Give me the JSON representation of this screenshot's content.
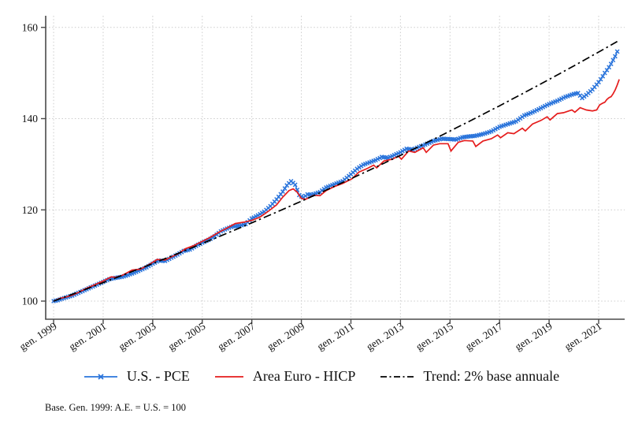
{
  "footnote": "Base. Gen. 1999: A.E. = U.S. = 100",
  "colors": {
    "us_pce": "#2a74db",
    "euro_hicp": "#e51c1c",
    "trend": "#000000",
    "grid": "#cccccc",
    "axis": "#4a4a4a",
    "text": "#111111",
    "background": "#ffffff"
  },
  "chart_data": {
    "type": "line",
    "title": "",
    "xlabel": "",
    "ylabel": "",
    "grid": "dotted",
    "legend_position": "bottom-center",
    "y_axis": {
      "ticks": [
        100,
        120,
        140,
        160
      ],
      "domain": [
        96.0,
        162.5
      ]
    },
    "x_axis": {
      "domain": [
        1998.68,
        2022.05
      ],
      "ticks": [
        {
          "t": 1999,
          "label": "gen. 1999"
        },
        {
          "t": 2001,
          "label": "gen. 2001"
        },
        {
          "t": 2003,
          "label": "gen. 2003"
        },
        {
          "t": 2005,
          "label": "gen. 2005"
        },
        {
          "t": 2007,
          "label": "gen. 2007"
        },
        {
          "t": 2009,
          "label": "gen. 2009"
        },
        {
          "t": 2011,
          "label": "gen. 2011"
        },
        {
          "t": 2013,
          "label": "gen. 2013"
        },
        {
          "t": 2015,
          "label": "gen. 2015"
        },
        {
          "t": 2017,
          "label": "gen. 2017"
        },
        {
          "t": 2019,
          "label": "gen. 2019"
        },
        {
          "t": 2021,
          "label": "gen. 2021"
        }
      ]
    },
    "series": [
      {
        "name": "U.S. - PCE",
        "color_key": "us_pce",
        "line_style": "solid",
        "marker": "x",
        "marker_interval_years": 0.0833,
        "points": [
          [
            1999.0,
            100.0
          ],
          [
            1999.17,
            100.2
          ],
          [
            1999.33,
            100.5
          ],
          [
            1999.5,
            100.8
          ],
          [
            1999.75,
            101.2
          ],
          [
            2000.0,
            101.8
          ],
          [
            2000.25,
            102.4
          ],
          [
            2000.5,
            103.0
          ],
          [
            2000.75,
            103.6
          ],
          [
            2001.0,
            104.2
          ],
          [
            2001.25,
            104.8
          ],
          [
            2001.5,
            105.1
          ],
          [
            2001.75,
            105.3
          ],
          [
            2002.0,
            105.7
          ],
          [
            2002.25,
            106.2
          ],
          [
            2002.5,
            106.8
          ],
          [
            2002.75,
            107.4
          ],
          [
            2003.0,
            108.2
          ],
          [
            2003.25,
            108.9
          ],
          [
            2003.5,
            108.8
          ],
          [
            2003.75,
            109.5
          ],
          [
            2004.0,
            110.2
          ],
          [
            2004.25,
            111.0
          ],
          [
            2004.5,
            111.3
          ],
          [
            2004.75,
            112.1
          ],
          [
            2005.0,
            112.8
          ],
          [
            2005.25,
            113.4
          ],
          [
            2005.5,
            114.2
          ],
          [
            2005.75,
            115.3
          ],
          [
            2006.0,
            115.9
          ],
          [
            2006.25,
            116.4
          ],
          [
            2006.5,
            116.5
          ],
          [
            2006.75,
            116.9
          ],
          [
            2007.0,
            118.1
          ],
          [
            2007.25,
            118.8
          ],
          [
            2007.5,
            119.6
          ],
          [
            2007.75,
            120.8
          ],
          [
            2008.0,
            122.3
          ],
          [
            2008.25,
            124.0
          ],
          [
            2008.42,
            125.4
          ],
          [
            2008.58,
            126.3
          ],
          [
            2008.75,
            125.5
          ],
          [
            2008.92,
            123.2
          ],
          [
            2009.08,
            122.7
          ],
          [
            2009.25,
            123.4
          ],
          [
            2009.42,
            123.3
          ],
          [
            2009.58,
            123.6
          ],
          [
            2009.75,
            123.9
          ],
          [
            2010.0,
            124.9
          ],
          [
            2010.33,
            125.6
          ],
          [
            2010.67,
            126.3
          ],
          [
            2011.0,
            127.8
          ],
          [
            2011.25,
            129.0
          ],
          [
            2011.5,
            129.9
          ],
          [
            2011.75,
            130.4
          ],
          [
            2012.0,
            130.9
          ],
          [
            2012.25,
            131.6
          ],
          [
            2012.5,
            131.4
          ],
          [
            2012.75,
            132.0
          ],
          [
            2013.0,
            132.6
          ],
          [
            2013.25,
            133.4
          ],
          [
            2013.5,
            133.2
          ],
          [
            2013.75,
            133.8
          ],
          [
            2014.0,
            134.3
          ],
          [
            2014.33,
            135.1
          ],
          [
            2014.67,
            135.6
          ],
          [
            2015.0,
            135.5
          ],
          [
            2015.25,
            135.4
          ],
          [
            2015.5,
            135.9
          ],
          [
            2015.75,
            136.1
          ],
          [
            2016.0,
            136.2
          ],
          [
            2016.33,
            136.6
          ],
          [
            2016.67,
            137.2
          ],
          [
            2017.0,
            138.2
          ],
          [
            2017.33,
            138.8
          ],
          [
            2017.67,
            139.4
          ],
          [
            2018.0,
            140.7
          ],
          [
            2018.33,
            141.4
          ],
          [
            2018.67,
            142.3
          ],
          [
            2019.0,
            143.2
          ],
          [
            2019.33,
            143.9
          ],
          [
            2019.67,
            144.8
          ],
          [
            2020.0,
            145.4
          ],
          [
            2020.17,
            145.6
          ],
          [
            2020.33,
            144.5
          ],
          [
            2020.5,
            145.2
          ],
          [
            2020.75,
            146.4
          ],
          [
            2021.0,
            148.0
          ],
          [
            2021.08,
            148.6
          ],
          [
            2021.17,
            149.3
          ],
          [
            2021.25,
            150.0
          ],
          [
            2021.33,
            150.6
          ],
          [
            2021.42,
            151.3
          ],
          [
            2021.5,
            152.0
          ],
          [
            2021.58,
            152.8
          ],
          [
            2021.67,
            153.7
          ],
          [
            2021.75,
            154.7
          ],
          [
            2021.83,
            155.7
          ]
        ]
      },
      {
        "name": "Area Euro - HICP",
        "color_key": "euro_hicp",
        "line_style": "solid",
        "marker": "none",
        "points": [
          [
            1999.0,
            100.0
          ],
          [
            1999.25,
            100.6
          ],
          [
            1999.5,
            100.9
          ],
          [
            1999.75,
            101.3
          ],
          [
            2000.0,
            101.9
          ],
          [
            2000.33,
            102.8
          ],
          [
            2000.67,
            103.6
          ],
          [
            2001.0,
            104.4
          ],
          [
            2001.33,
            105.3
          ],
          [
            2001.5,
            105.2
          ],
          [
            2001.75,
            105.6
          ],
          [
            2002.0,
            106.3
          ],
          [
            2002.17,
            106.8
          ],
          [
            2002.5,
            107.0
          ],
          [
            2002.75,
            107.7
          ],
          [
            2003.0,
            108.5
          ],
          [
            2003.17,
            109.1
          ],
          [
            2003.5,
            109.0
          ],
          [
            2003.75,
            109.7
          ],
          [
            2004.0,
            110.3
          ],
          [
            2004.33,
            111.5
          ],
          [
            2004.67,
            112.2
          ],
          [
            2005.0,
            113.1
          ],
          [
            2005.33,
            114.0
          ],
          [
            2005.67,
            115.1
          ],
          [
            2006.0,
            116.0
          ],
          [
            2006.33,
            117.0
          ],
          [
            2006.67,
            117.3
          ],
          [
            2007.0,
            117.7
          ],
          [
            2007.33,
            118.4
          ],
          [
            2007.67,
            119.7
          ],
          [
            2008.0,
            121.1
          ],
          [
            2008.25,
            122.8
          ],
          [
            2008.5,
            124.2
          ],
          [
            2008.67,
            124.6
          ],
          [
            2008.83,
            123.9
          ],
          [
            2009.0,
            122.5
          ],
          [
            2009.17,
            122.3
          ],
          [
            2009.5,
            123.2
          ],
          [
            2009.75,
            123.1
          ],
          [
            2010.0,
            124.2
          ],
          [
            2010.33,
            125.1
          ],
          [
            2010.67,
            125.8
          ],
          [
            2011.04,
            126.8
          ],
          [
            2011.33,
            128.3
          ],
          [
            2011.67,
            129.1
          ],
          [
            2011.92,
            129.8
          ],
          [
            2012.04,
            129.2
          ],
          [
            2012.33,
            130.7
          ],
          [
            2012.67,
            131.1
          ],
          [
            2012.92,
            131.8
          ],
          [
            2013.04,
            131.1
          ],
          [
            2013.33,
            132.9
          ],
          [
            2013.58,
            132.6
          ],
          [
            2013.92,
            133.6
          ],
          [
            2014.04,
            132.6
          ],
          [
            2014.33,
            134.2
          ],
          [
            2014.58,
            134.5
          ],
          [
            2014.92,
            134.5
          ],
          [
            2015.04,
            132.9
          ],
          [
            2015.33,
            134.8
          ],
          [
            2015.58,
            135.2
          ],
          [
            2015.92,
            135.1
          ],
          [
            2016.04,
            133.9
          ],
          [
            2016.33,
            135.1
          ],
          [
            2016.67,
            135.6
          ],
          [
            2016.92,
            136.4
          ],
          [
            2017.04,
            135.8
          ],
          [
            2017.33,
            136.9
          ],
          [
            2017.58,
            136.7
          ],
          [
            2017.92,
            137.9
          ],
          [
            2018.04,
            137.3
          ],
          [
            2018.33,
            138.8
          ],
          [
            2018.67,
            139.6
          ],
          [
            2018.92,
            140.4
          ],
          [
            2019.04,
            139.7
          ],
          [
            2019.33,
            141.1
          ],
          [
            2019.58,
            141.3
          ],
          [
            2019.92,
            141.9
          ],
          [
            2020.04,
            141.4
          ],
          [
            2020.25,
            142.4
          ],
          [
            2020.5,
            141.9
          ],
          [
            2020.75,
            141.7
          ],
          [
            2020.92,
            141.9
          ],
          [
            2021.04,
            143.0
          ],
          [
            2021.17,
            143.4
          ],
          [
            2021.25,
            143.6
          ],
          [
            2021.33,
            144.2
          ],
          [
            2021.42,
            144.6
          ],
          [
            2021.5,
            144.8
          ],
          [
            2021.58,
            145.4
          ],
          [
            2021.67,
            146.3
          ],
          [
            2021.75,
            147.4
          ],
          [
            2021.83,
            148.6
          ]
        ]
      },
      {
        "name": "Trend: 2% base annuale",
        "color_key": "trend",
        "line_style": "dash-dot",
        "marker": "none",
        "trend": {
          "start_t": 1999.0,
          "end_t": 2021.9,
          "start_value": 100,
          "annual_rate_pct": 2
        }
      }
    ]
  }
}
